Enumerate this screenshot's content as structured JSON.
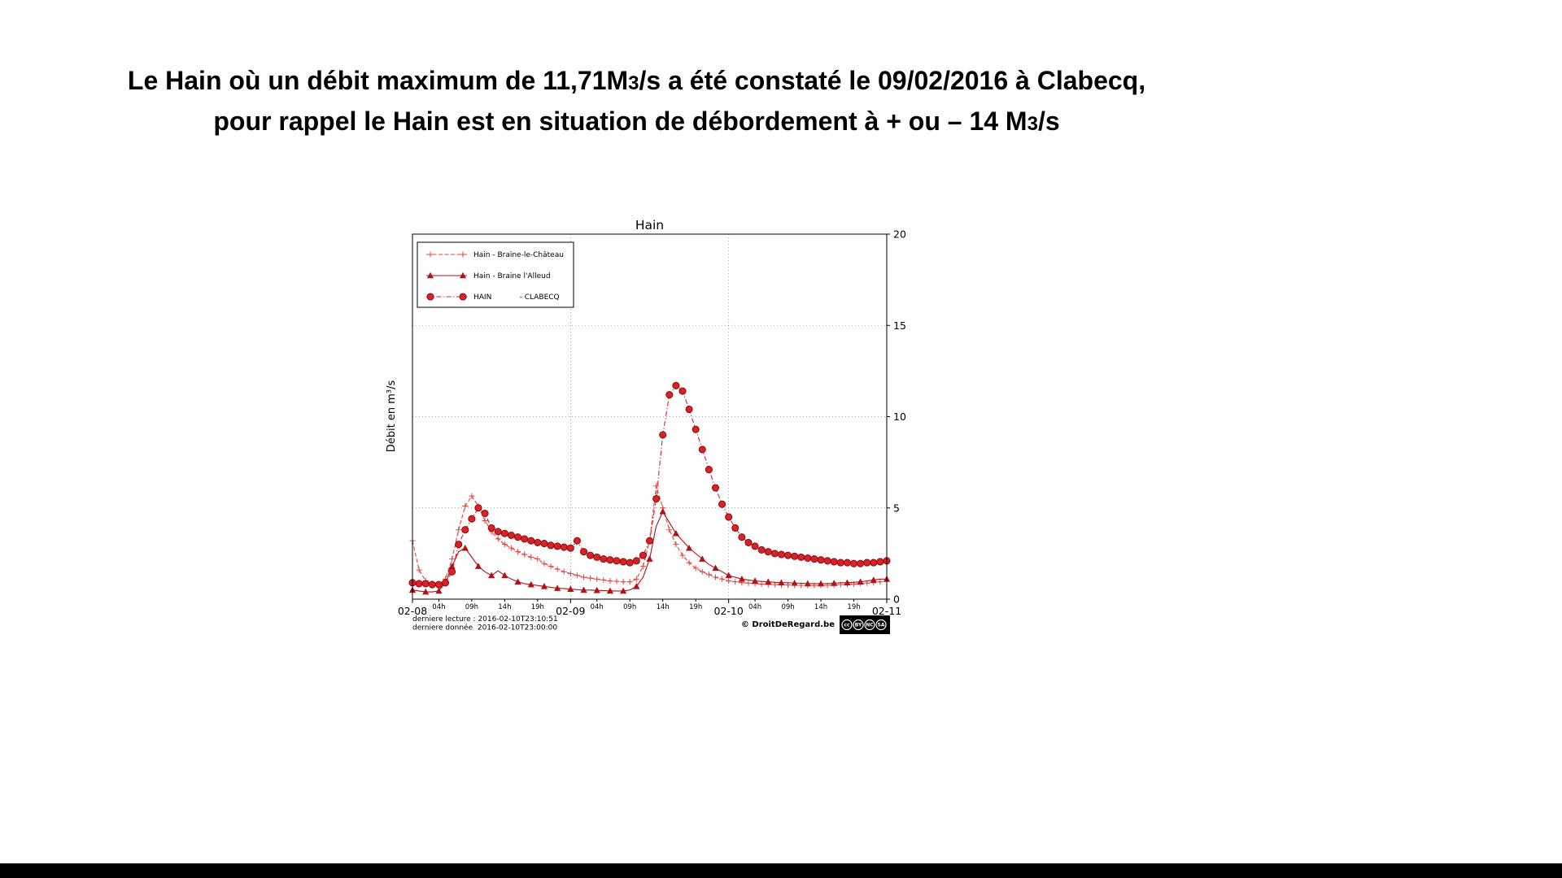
{
  "headline": {
    "l1_before": "Le Hain où un débit maximum de 11,71M",
    "l1_small": "3",
    "l1_after": "/s a été constaté le 09/02/2016 à Clabecq,",
    "l2_before": "pour rappel le Hain est en situation de débordement à + ou – 14 M",
    "l2_small": "3",
    "l2_after": "/s"
  },
  "chart_data": {
    "type": "line",
    "title": "Hain",
    "xlabel": "",
    "ylabel": "Débit en m³/s",
    "ylim": [
      0,
      20
    ],
    "yticks": [
      0,
      5,
      10,
      15,
      20
    ],
    "grid": "dotted",
    "legend_position": "upper-left",
    "x_unit": "hours since 2016-02-08 00:00",
    "x_range_hours": [
      0,
      72
    ],
    "x_major_ticks": [
      {
        "hour": 0,
        "label": "02-08"
      },
      {
        "hour": 24,
        "label": "02-09"
      },
      {
        "hour": 48,
        "label": "02-10"
      },
      {
        "hour": 72,
        "label": "02-11"
      }
    ],
    "x_minor_ticks": [
      {
        "hour": 4,
        "label": "04h"
      },
      {
        "hour": 9,
        "label": "09h"
      },
      {
        "hour": 14,
        "label": "14h"
      },
      {
        "hour": 19,
        "label": "19h"
      },
      {
        "hour": 28,
        "label": "04h"
      },
      {
        "hour": 33,
        "label": "09h"
      },
      {
        "hour": 38,
        "label": "14h"
      },
      {
        "hour": 43,
        "label": "19h"
      },
      {
        "hour": 52,
        "label": "04h"
      },
      {
        "hour": 57,
        "label": "09h"
      },
      {
        "hour": 62,
        "label": "14h"
      },
      {
        "hour": 67,
        "label": "19h"
      }
    ],
    "series": [
      {
        "name": "Hain - Braine-le-Château",
        "marker": "plus",
        "line": "dashed",
        "color": "#e8413c",
        "marker_every": 1,
        "values": [
          3.2,
          1.6,
          1.0,
          0.85,
          0.8,
          1.1,
          2.2,
          3.8,
          5.1,
          5.65,
          5.1,
          4.3,
          3.7,
          3.3,
          3.0,
          2.8,
          2.6,
          2.45,
          2.3,
          2.2,
          1.95,
          1.8,
          1.65,
          1.5,
          1.4,
          1.3,
          1.2,
          1.15,
          1.1,
          1.05,
          1.0,
          0.98,
          0.95,
          0.95,
          1.1,
          1.8,
          3.2,
          6.2,
          5.0,
          3.8,
          3.0,
          2.4,
          2.0,
          1.7,
          1.5,
          1.35,
          1.2,
          1.1,
          1.0,
          0.95,
          0.9,
          0.88,
          0.85,
          0.83,
          0.8,
          0.8,
          0.78,
          0.78,
          0.76,
          0.76,
          0.75,
          0.75,
          0.75,
          0.76,
          0.78,
          0.8,
          0.8,
          0.82,
          0.85,
          0.88,
          0.9,
          0.95,
          1.0
        ]
      },
      {
        "name": "Hain - Braine l'Alleud",
        "marker": "triangle_up",
        "line": "solid",
        "color": "#b01217",
        "marker_every": 2,
        "values": [
          0.5,
          0.45,
          0.4,
          0.4,
          0.45,
          0.9,
          1.8,
          2.6,
          2.8,
          2.3,
          1.8,
          1.5,
          1.3,
          1.55,
          1.3,
          1.1,
          0.95,
          0.85,
          0.8,
          0.75,
          0.7,
          0.65,
          0.6,
          0.58,
          0.55,
          0.52,
          0.5,
          0.5,
          0.48,
          0.47,
          0.45,
          0.45,
          0.45,
          0.5,
          0.7,
          1.2,
          2.2,
          4.0,
          4.8,
          4.2,
          3.6,
          3.2,
          2.8,
          2.5,
          2.2,
          1.9,
          1.7,
          1.5,
          1.3,
          1.2,
          1.1,
          1.05,
          1.0,
          0.97,
          0.95,
          0.92,
          0.9,
          0.9,
          0.88,
          0.87,
          0.85,
          0.85,
          0.85,
          0.85,
          0.87,
          0.9,
          0.9,
          0.92,
          0.95,
          1.0,
          1.05,
          1.1,
          1.1
        ]
      },
      {
        "name": "HAIN            - CLABECQ",
        "marker": "circle",
        "line": "dashdot",
        "color": "#da2128",
        "marker_fill": "#da2128",
        "marker_edge": "#7c0a0a",
        "marker_every": 1,
        "values": [
          0.9,
          0.85,
          0.85,
          0.8,
          0.8,
          0.9,
          1.5,
          3.0,
          3.8,
          4.4,
          5.0,
          4.7,
          3.9,
          3.7,
          3.6,
          3.5,
          3.4,
          3.3,
          3.2,
          3.1,
          3.05,
          2.95,
          2.9,
          2.85,
          2.8,
          3.2,
          2.6,
          2.4,
          2.3,
          2.2,
          2.15,
          2.1,
          2.05,
          2.0,
          2.1,
          2.4,
          3.2,
          5.5,
          9.0,
          11.2,
          11.7,
          11.4,
          10.4,
          9.3,
          8.2,
          7.1,
          6.1,
          5.2,
          4.5,
          3.9,
          3.4,
          3.1,
          2.9,
          2.7,
          2.6,
          2.5,
          2.45,
          2.4,
          2.35,
          2.3,
          2.25,
          2.2,
          2.15,
          2.1,
          2.05,
          2.0,
          2.0,
          1.95,
          1.95,
          2.0,
          2.0,
          2.05,
          2.1
        ]
      }
    ],
    "annotations": {
      "max_flow_m3s": "11,71",
      "max_flow_date": "09/02/2016",
      "max_flow_station": "Clabecq",
      "overflow_threshold_m3s": "14"
    }
  },
  "footer": {
    "last_read": "derniere lecture : 2016-02-10T23:10:51",
    "last_data": "derniere donnée  2016-02-10T23:00:00",
    "copyright": "© DroitDeRegard.be",
    "license_badges": [
      "cc",
      "BY",
      "NC",
      "SA"
    ]
  }
}
